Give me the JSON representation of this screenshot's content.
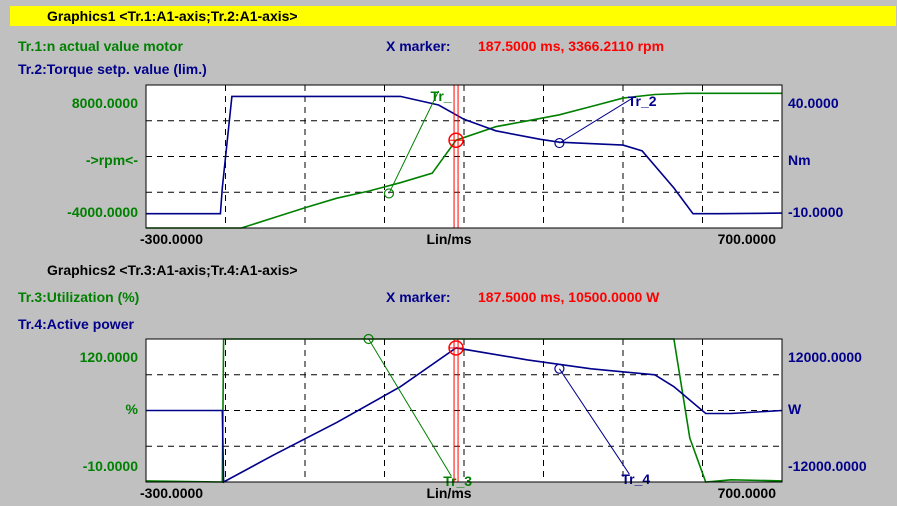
{
  "colors": {
    "green": "#008000",
    "navy": "#00008b",
    "red": "#ff0000",
    "title_highlight": "#ffff00",
    "panel_bg": "#c0c0c0",
    "plot_bg": "#ffffff"
  },
  "chart_data": [
    {
      "type": "line",
      "title": "Graphics1 <Tr.1:A1-axis;Tr.2:A1-axis>",
      "trace_labels": [
        "Tr.1:n actual value motor",
        "Tr.2:Torque setp. value (lim.)"
      ],
      "marker_label": "X marker:",
      "marker_value": "187.5000 ms, 3366.2110 rpm",
      "marker_x": 187.5,
      "xlim": [
        -300,
        700
      ],
      "x_ticks": [
        "-300.0000",
        "700.0000"
      ],
      "x_unit": "Lin/ms",
      "left_axis": {
        "top": "8000.0000",
        "mid": "->rpm<-",
        "bottom": "-4000.0000",
        "range": [
          -4000,
          8000
        ]
      },
      "right_axis": {
        "top": "40.0000",
        "mid": "Nm",
        "bottom": "-10.0000",
        "range": [
          -10,
          40
        ]
      },
      "grid": true,
      "series": [
        {
          "name": "Tr_1",
          "axis": "left",
          "color": "green",
          "x": [
            -300,
            -150,
            -100,
            -50,
            0,
            50,
            100,
            150,
            187.5,
            250,
            300,
            350,
            400,
            450,
            500,
            550,
            600,
            700
          ],
          "y": [
            -4000,
            -4000,
            -3150,
            -2300,
            -1500,
            -900,
            -200,
            600,
            3366,
            4500,
            5000,
            5500,
            6200,
            6900,
            7200,
            7300,
            7300,
            7300
          ],
          "tag": {
            "label": "Tr_",
            "x": 82,
            "y": -1100,
            "label_x": 160,
            "label_y": 7000
          }
        },
        {
          "name": "Tr_2",
          "axis": "right",
          "color": "navy",
          "x": [
            -300,
            -183,
            -180,
            -165,
            100,
            160,
            200,
            250,
            320,
            350,
            450,
            480,
            530,
            560,
            600,
            700
          ],
          "y": [
            -5,
            -5,
            4,
            36,
            36,
            33,
            28,
            24,
            21,
            20,
            19,
            17,
            4,
            -5,
            -5,
            -4.8
          ],
          "tag": {
            "label": "Tr_2",
            "x": 350,
            "y": 19.7,
            "label_x": 470,
            "label_y": 34
          }
        }
      ]
    },
    {
      "type": "line",
      "title": "Graphics2 <Tr.3:A1-axis;Tr.4:A1-axis>",
      "trace_labels": [
        "Tr.3:Utilization (%)",
        "Tr.4:Active power"
      ],
      "marker_label": "X marker:",
      "marker_value": "187.5000 ms, 10500.0000 W",
      "marker_x": 187.5,
      "xlim": [
        -300,
        700
      ],
      "x_ticks": [
        "-300.0000",
        "700.0000"
      ],
      "x_unit": "Lin/ms",
      "left_axis": {
        "top": "120.0000",
        "mid": "%",
        "bottom": "-10.0000",
        "range": [
          -10,
          120
        ]
      },
      "right_axis": {
        "top": "12000.0000",
        "mid": "W",
        "bottom": "-12000.0000",
        "range": [
          -12000,
          12000
        ]
      },
      "grid": true,
      "series": [
        {
          "name": "Tr_3",
          "axis": "left",
          "color": "green",
          "x": [
            -300,
            -180,
            -178,
            530,
            555,
            580,
            620,
            700
          ],
          "y": [
            -9,
            -10,
            120,
            120,
            30,
            -10,
            -8,
            -9
          ],
          "tag": {
            "label": "Tr_3",
            "x": 50,
            "y": 120,
            "label_x": 180,
            "label_y": -10
          }
        },
        {
          "name": "Tr_4",
          "axis": "right",
          "color": "navy",
          "x": [
            -300,
            -180,
            -178,
            -100,
            0,
            100,
            187.5,
            300,
            400,
            500,
            530,
            580,
            620,
            700
          ],
          "y": [
            0,
            0,
            -12000,
            -7500,
            -2000,
            4000,
            10500,
            8500,
            7000,
            6000,
            4000,
            -500,
            -500,
            0
          ],
          "tag": {
            "label": "Tr_4",
            "x": 350,
            "y": 7000,
            "label_x": 460,
            "label_y": -11700
          }
        }
      ]
    }
  ]
}
